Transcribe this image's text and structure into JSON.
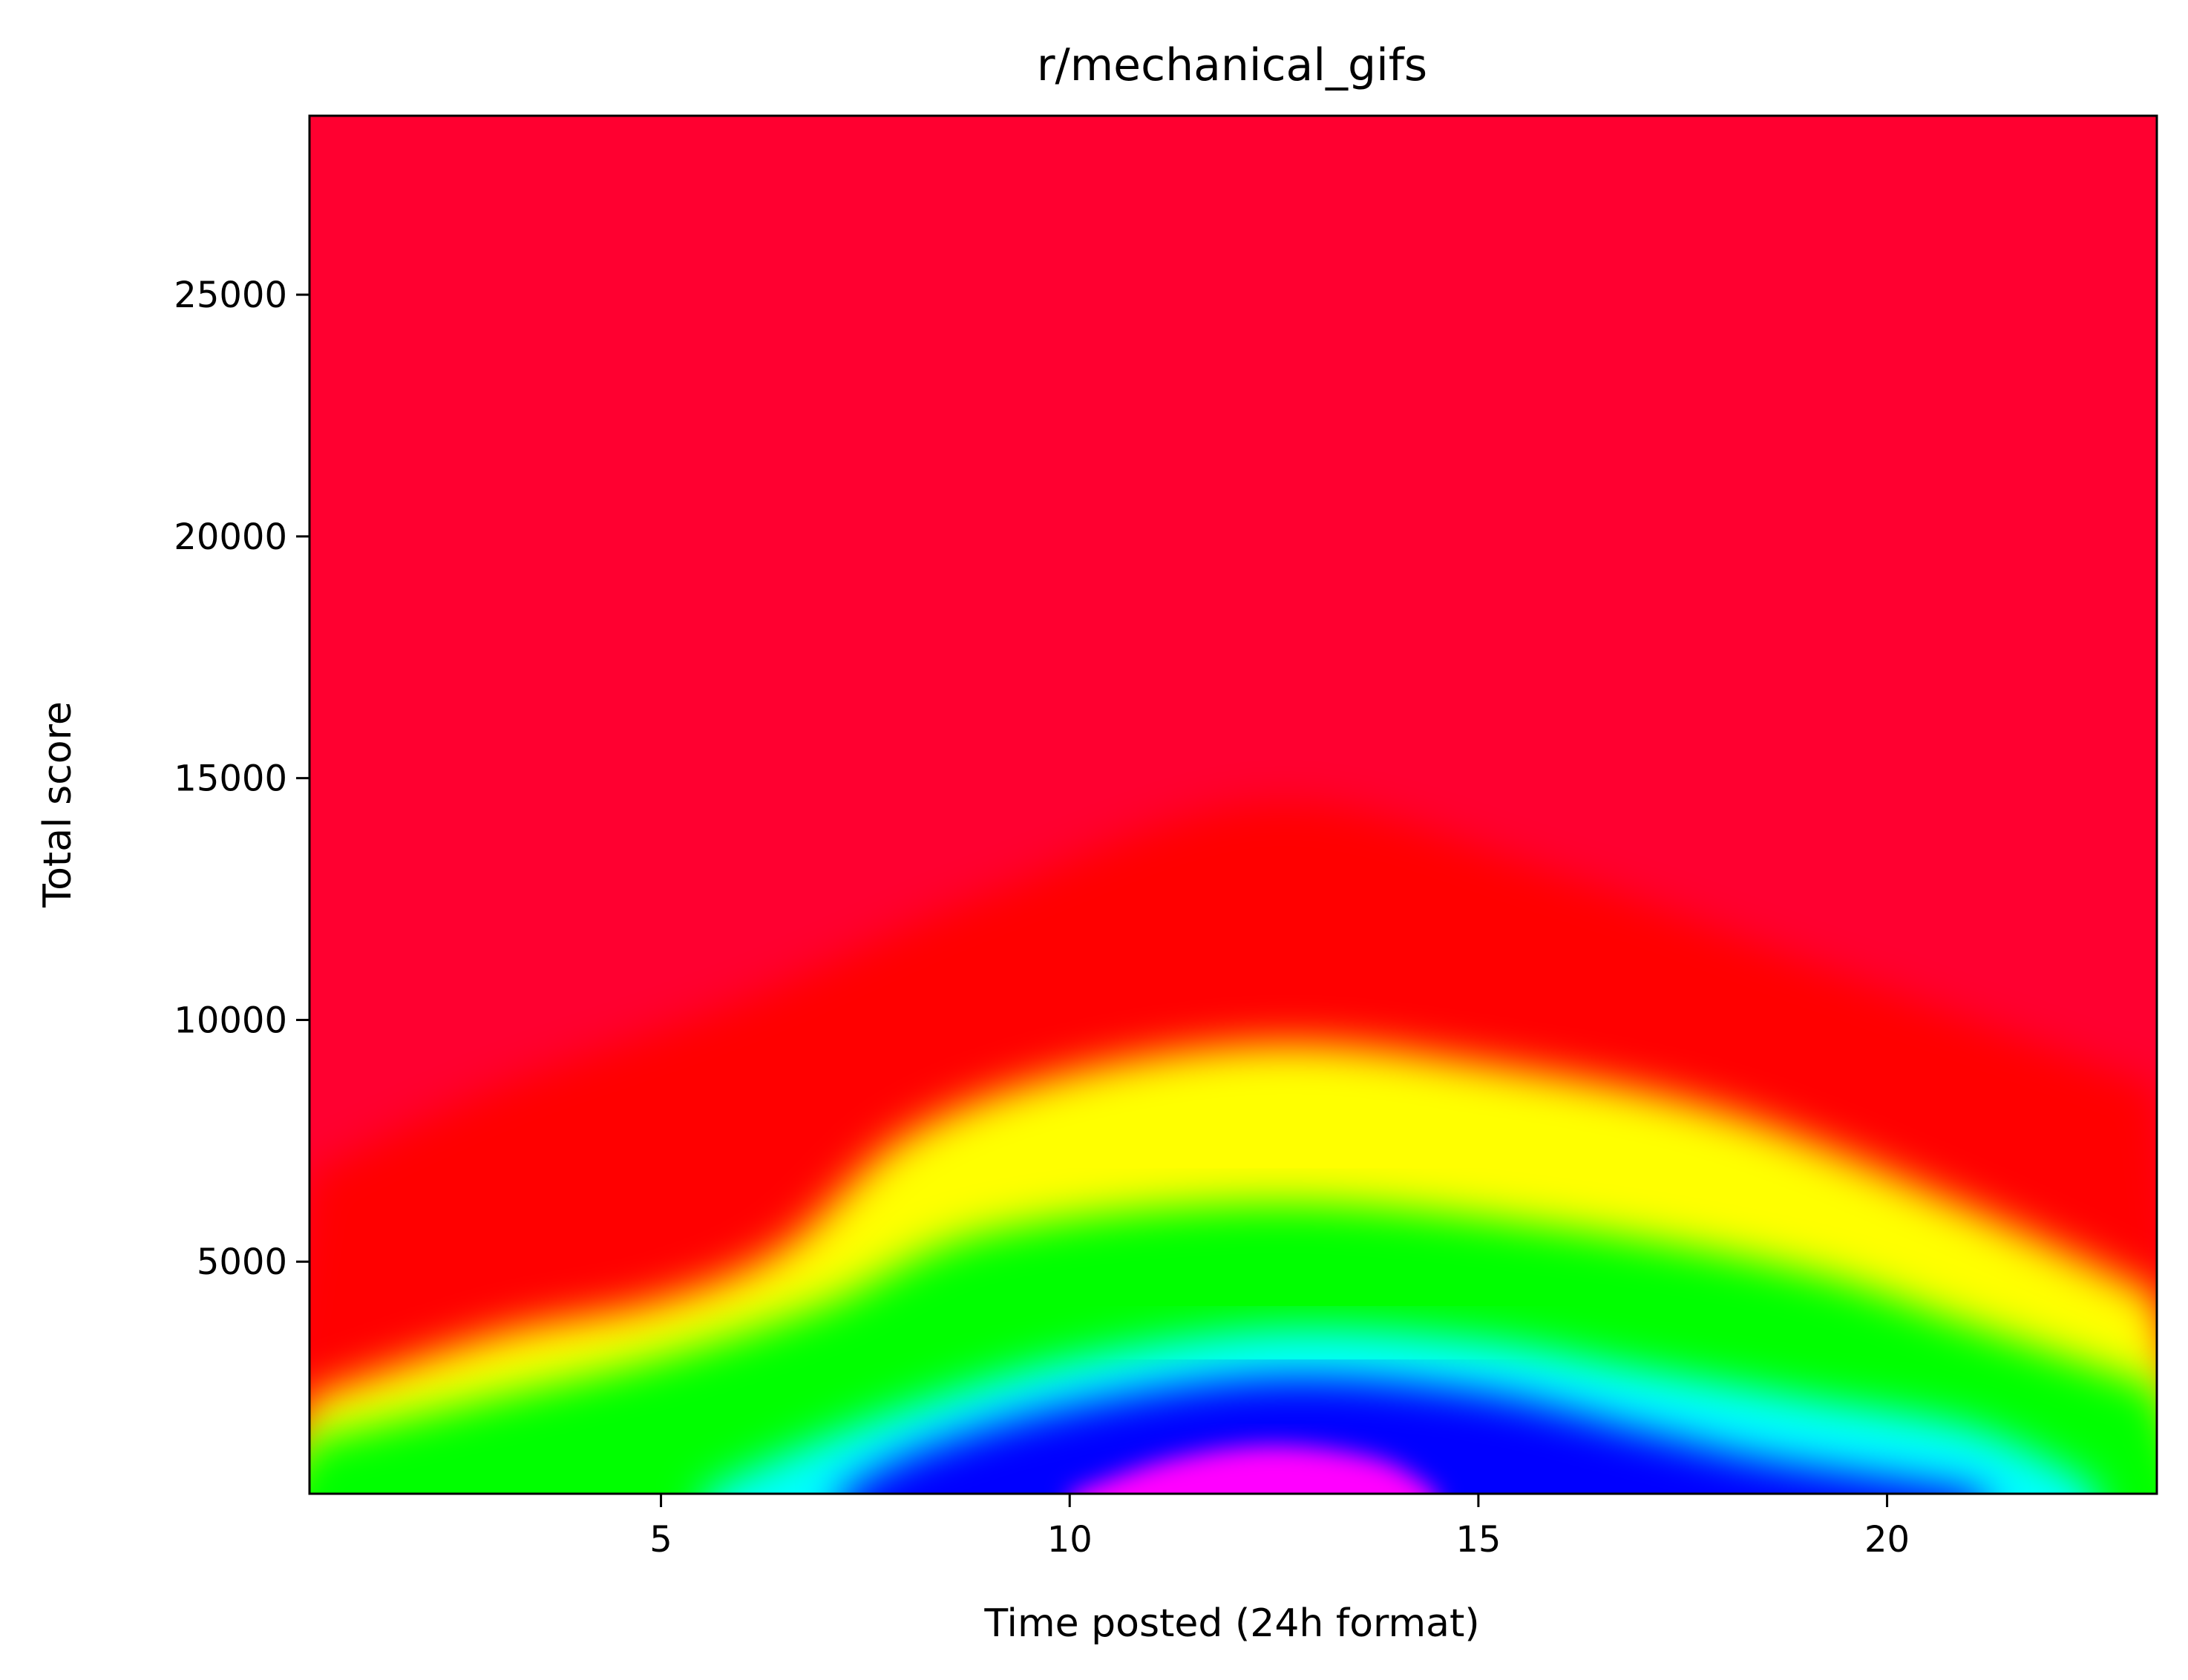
{
  "chart_data": {
    "type": "heatmap",
    "title": "r/mechanical_gifs",
    "xlabel": "Time posted (24h format)",
    "ylabel": "Total score",
    "xlim": [
      0.7,
      23.3
    ],
    "ylim": [
      200,
      28700
    ],
    "x_ticks": [
      5,
      10,
      15,
      20
    ],
    "y_ticks": [
      5000,
      10000,
      15000,
      20000,
      25000
    ],
    "colormap": "gist_rainbow",
    "colormap_order": [
      "#ff0029",
      "#ff0000",
      "#ffff00",
      "#00ff00",
      "#00ffff",
      "#0000ff",
      "#ff00ff"
    ],
    "grid": false,
    "density_peak": {
      "x": 12.5,
      "y": 700
    },
    "contours": [
      {
        "level": "yellow",
        "points": [
          [
            0.7,
            2200
          ],
          [
            3,
            3500
          ],
          [
            5,
            4200
          ],
          [
            6.5,
            5300
          ],
          [
            8,
            7600
          ],
          [
            10,
            8900
          ],
          [
            12.5,
            9500
          ],
          [
            15,
            9100
          ],
          [
            18,
            8100
          ],
          [
            21,
            6100
          ],
          [
            23.3,
            4300
          ]
        ]
      },
      {
        "level": "green",
        "points": [
          [
            0.7,
            1300
          ],
          [
            3,
            2200
          ],
          [
            5,
            3000
          ],
          [
            7,
            4100
          ],
          [
            9,
            5600
          ],
          [
            12.5,
            6200
          ],
          [
            16,
            5700
          ],
          [
            19,
            4800
          ],
          [
            21,
            3700
          ],
          [
            23.3,
            2400
          ]
        ]
      },
      {
        "level": "cyan",
        "points": [
          [
            5.5,
            200
          ],
          [
            6.5,
            1000
          ],
          [
            8,
            2000
          ],
          [
            10,
            3000
          ],
          [
            12.5,
            3600
          ],
          [
            15,
            3400
          ],
          [
            17,
            2800
          ],
          [
            19,
            2200
          ],
          [
            21,
            1600
          ],
          [
            22.3,
            600
          ],
          [
            22.6,
            200
          ]
        ]
      },
      {
        "level": "blue",
        "points": [
          [
            7.2,
            200
          ],
          [
            8.2,
            1100
          ],
          [
            10,
            2000
          ],
          [
            12.5,
            2600
          ],
          [
            15,
            2300
          ],
          [
            17,
            1500
          ],
          [
            18.5,
            900
          ],
          [
            20.5,
            400
          ],
          [
            21.2,
            200
          ]
        ]
      },
      {
        "level": "magenta",
        "points": [
          [
            10,
            200
          ],
          [
            11.2,
            900
          ],
          [
            12.5,
            1200
          ],
          [
            13.8,
            900
          ],
          [
            14.5,
            200
          ]
        ]
      }
    ]
  }
}
